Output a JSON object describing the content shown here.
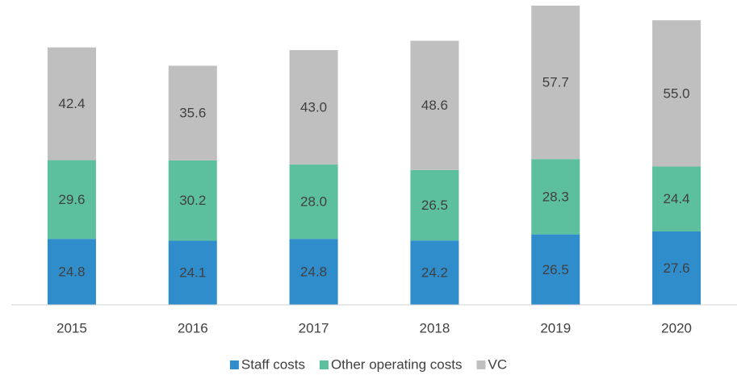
{
  "chart_data": {
    "type": "stacked_bar",
    "categories": [
      "2015",
      "2016",
      "2017",
      "2018",
      "2019",
      "2020"
    ],
    "series": [
      {
        "name": "Staff costs",
        "color": "#2f8dcb",
        "values": [
          24.8,
          24.1,
          24.8,
          24.2,
          26.5,
          27.6
        ]
      },
      {
        "name": "Other operating costs",
        "color": "#5cbf9d",
        "values": [
          29.6,
          30.2,
          28.0,
          26.5,
          28.3,
          24.4
        ]
      },
      {
        "name": "VC",
        "color": "#bfbfbf",
        "values": [
          42.4,
          35.6,
          43.0,
          48.6,
          57.7,
          55.0
        ]
      }
    ],
    "value_labels": [
      [
        "24.8",
        "24.1",
        "24.8",
        "24.2",
        "26.5",
        "27.6"
      ],
      [
        "29.6",
        "30.2",
        "28.0",
        "26.5",
        "28.3",
        "24.4"
      ],
      [
        "42.4",
        "35.6",
        "43.0",
        "48.6",
        "57.7",
        "55.0"
      ]
    ],
    "legend": "bottom"
  }
}
